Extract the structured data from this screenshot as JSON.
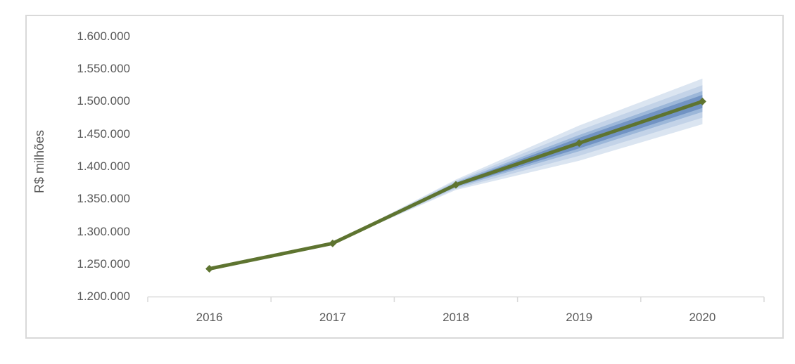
{
  "chart": {
    "background": "#ffffff",
    "frame_border_color": "#d9d9d9",
    "axis_color": "#d9d9d9",
    "text_color": "#595959"
  },
  "chart_data": {
    "type": "line",
    "title": "",
    "xlabel": "",
    "ylabel": "R$ milhões",
    "categories": [
      "2016",
      "2017",
      "2018",
      "2019",
      "2020"
    ],
    "y_tick_values": [
      1600000,
      1550000,
      1500000,
      1450000,
      1400000,
      1350000,
      1300000,
      1250000,
      1200000
    ],
    "y_tick_labels": [
      "1.600.000",
      "1.550.000",
      "1.500.000",
      "1.450.000",
      "1.400.000",
      "1.350.000",
      "1.300.000",
      "1.250.000",
      "1.200.000"
    ],
    "ylim": [
      1200000,
      1600000
    ],
    "y_tick_step": 50000,
    "grid": false,
    "legend": "none",
    "series": [
      {
        "name": "central-line",
        "type": "line",
        "color": "#5e7430",
        "marker": "diamond",
        "values": [
          1243000,
          1282000,
          1372000,
          1436000,
          1500000
        ]
      }
    ],
    "fan_bands": [
      {
        "name": "band-outer",
        "color": "#dbe5f1",
        "half_widths": [
          0,
          0,
          8000,
          27000,
          35000
        ]
      },
      {
        "name": "band-mid-outer",
        "color": "#c3d3e8",
        "half_widths": [
          0,
          0,
          6000,
          19500,
          25000
        ]
      },
      {
        "name": "band-mid-inner",
        "color": "#9cb7d9",
        "half_widths": [
          0,
          0,
          4000,
          12500,
          16000
        ]
      },
      {
        "name": "band-inner",
        "color": "#7193c3",
        "half_widths": [
          0,
          0,
          2500,
          8000,
          10000
        ]
      }
    ]
  }
}
